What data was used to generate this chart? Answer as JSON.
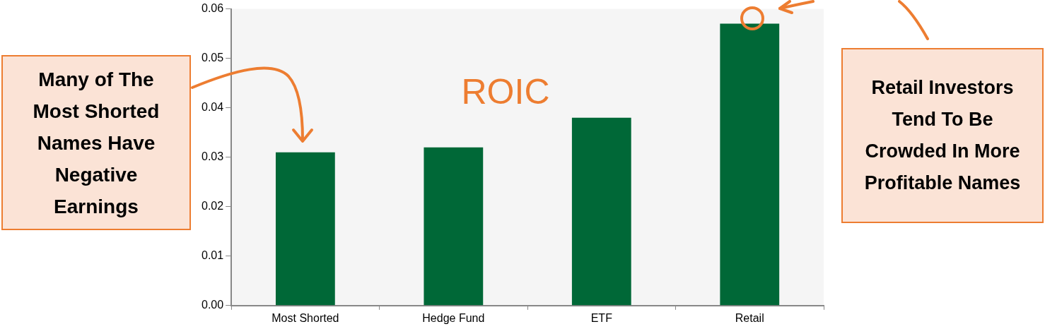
{
  "chart_data": {
    "type": "bar",
    "categories": [
      "Most Shorted",
      "Hedge Fund",
      "ETF",
      "Retail"
    ],
    "values": [
      0.031,
      0.032,
      0.038,
      0.057
    ],
    "color": "#006837",
    "ylim": [
      0,
      0.06
    ],
    "yticks": [
      {
        "value": 0,
        "label": "0.00"
      },
      {
        "value": 0.01,
        "label": "0.01"
      },
      {
        "value": 0.02,
        "label": "0.02"
      },
      {
        "value": 0.03,
        "label": "0.03"
      },
      {
        "value": 0.04,
        "label": "0.04"
      },
      {
        "value": 0.05,
        "label": "0.05"
      },
      {
        "value": 0.06,
        "label": "0.06"
      }
    ],
    "grid": false,
    "legend": false,
    "annotations": [
      "ROIC",
      "Many of The Most Shorted Names Have Negative Earnings",
      "Retail Investors Tend To Be Crowded In More Profitable Names"
    ]
  }
}
